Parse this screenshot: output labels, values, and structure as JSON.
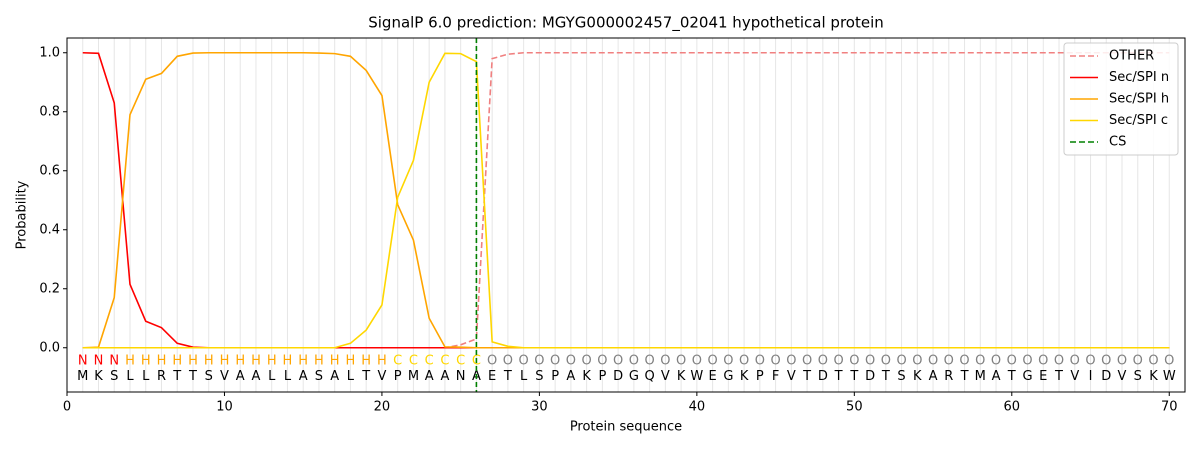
{
  "chart_data": {
    "type": "line",
    "title": "SignalP 6.0 prediction: MGYG000002457_02041 hypothetical protein",
    "x_label": "Protein sequence",
    "y_label": "Probability",
    "x": [
      1,
      2,
      3,
      4,
      5,
      6,
      7,
      8,
      9,
      10,
      11,
      12,
      13,
      14,
      15,
      16,
      17,
      18,
      19,
      20,
      21,
      22,
      23,
      24,
      25,
      26,
      27,
      28,
      29,
      30,
      31,
      32,
      33,
      34,
      35,
      36,
      37,
      38,
      39,
      40,
      41,
      42,
      43,
      44,
      45,
      46,
      47,
      48,
      49,
      50,
      51,
      52,
      53,
      54,
      55,
      56,
      57,
      58,
      59,
      60,
      61,
      62,
      63,
      64,
      65,
      66,
      67,
      68,
      69,
      70
    ],
    "sequence": [
      "M",
      "K",
      "S",
      "L",
      "L",
      "R",
      "T",
      "T",
      "S",
      "V",
      "A",
      "A",
      "L",
      "L",
      "A",
      "S",
      "A",
      "L",
      "T",
      "V",
      "P",
      "M",
      "A",
      "A",
      "N",
      "A",
      "E",
      "T",
      "L",
      "S",
      "P",
      "A",
      "K",
      "P",
      "D",
      "G",
      "Q",
      "V",
      "K",
      "W",
      "E",
      "G",
      "K",
      "P",
      "F",
      "V",
      "T",
      "D",
      "T",
      "T",
      "D",
      "T",
      "S",
      "K",
      "A",
      "R",
      "T",
      "M",
      "A",
      "T",
      "G",
      "E",
      "T",
      "V",
      "I",
      "D",
      "V",
      "S",
      "K",
      "W"
    ],
    "residue_labels": [
      "N",
      "N",
      "N",
      "H",
      "H",
      "H",
      "H",
      "H",
      "H",
      "H",
      "H",
      "H",
      "H",
      "H",
      "H",
      "H",
      "H",
      "H",
      "H",
      "H",
      "C",
      "C",
      "C",
      "C",
      "C",
      "C",
      "O",
      "O",
      "O",
      "O",
      "O",
      "O",
      "O",
      "O",
      "O",
      "O",
      "O",
      "O",
      "O",
      "O",
      "O",
      "O",
      "O",
      "O",
      "O",
      "O",
      "O",
      "O",
      "O",
      "O",
      "O",
      "O",
      "O",
      "O",
      "O",
      "O",
      "O",
      "O",
      "O",
      "O",
      "O",
      "O",
      "O",
      "O",
      "O",
      "O",
      "O",
      "O",
      "O",
      "O"
    ],
    "residue_label_colors": {
      "N": "#ff0000",
      "H": "#ffa500",
      "C": "#ffd700",
      "O": "#808080"
    },
    "series": [
      {
        "name": "OTHER",
        "color": "#f08080",
        "linestyle": "dashed",
        "values": [
          0,
          0,
          0,
          0,
          0,
          0,
          0,
          0,
          0,
          0,
          0,
          0,
          0,
          0,
          0,
          0,
          0,
          0,
          0,
          0,
          0,
          0,
          0,
          0,
          0.01,
          0.03,
          0.98,
          0.995,
          1,
          1,
          1,
          1,
          1,
          1,
          1,
          1,
          1,
          1,
          1,
          1,
          1,
          1,
          1,
          1,
          1,
          1,
          1,
          1,
          1,
          1,
          1,
          1,
          1,
          1,
          1,
          1,
          1,
          1,
          1,
          1,
          1,
          1,
          1,
          1,
          1,
          1,
          1,
          1,
          1,
          1
        ]
      },
      {
        "name": "Sec/SPI n",
        "color": "#ff0000",
        "linestyle": "solid",
        "values": [
          1.0,
          0.998,
          0.83,
          0.215,
          0.09,
          0.068,
          0.015,
          0.002,
          0,
          0,
          0,
          0,
          0,
          0,
          0,
          0,
          0,
          0,
          0,
          0,
          0,
          0,
          0,
          0,
          0,
          0,
          0,
          0,
          0,
          0,
          0,
          0,
          0,
          0,
          0,
          0,
          0,
          0,
          0,
          0,
          0,
          0,
          0,
          0,
          0,
          0,
          0,
          0,
          0,
          0,
          0,
          0,
          0,
          0,
          0,
          0,
          0,
          0,
          0,
          0,
          0,
          0,
          0,
          0,
          0,
          0,
          0,
          0,
          0,
          0
        ]
      },
      {
        "name": "Sec/SPI h",
        "color": "#ffa500",
        "linestyle": "solid",
        "values": [
          0,
          0.002,
          0.17,
          0.79,
          0.91,
          0.93,
          0.988,
          0.999,
          1,
          1,
          1,
          1,
          1,
          1,
          1,
          0.999,
          0.997,
          0.988,
          0.94,
          0.855,
          0.485,
          0.365,
          0.1,
          0.003,
          0.002,
          0,
          0,
          0,
          0,
          0,
          0,
          0,
          0,
          0,
          0,
          0,
          0,
          0,
          0,
          0,
          0,
          0,
          0,
          0,
          0,
          0,
          0,
          0,
          0,
          0,
          0,
          0,
          0,
          0,
          0,
          0,
          0,
          0,
          0,
          0,
          0,
          0,
          0,
          0,
          0,
          0,
          0,
          0,
          0,
          0
        ]
      },
      {
        "name": "Sec/SPI c",
        "color": "#ffd700",
        "linestyle": "solid",
        "values": [
          0,
          0,
          0,
          0,
          0,
          0,
          0,
          0,
          0,
          0,
          0,
          0,
          0,
          0,
          0,
          0,
          0,
          0.015,
          0.06,
          0.145,
          0.51,
          0.635,
          0.9,
          0.998,
          0.997,
          0.97,
          0.02,
          0.005,
          0,
          0,
          0,
          0,
          0,
          0,
          0,
          0,
          0,
          0,
          0,
          0,
          0,
          0,
          0,
          0,
          0,
          0,
          0,
          0,
          0,
          0,
          0,
          0,
          0,
          0,
          0,
          0,
          0,
          0,
          0,
          0,
          0,
          0,
          0,
          0,
          0,
          0,
          0,
          0,
          0,
          0
        ]
      }
    ],
    "cs": {
      "name": "CS",
      "color": "#008000",
      "x": 26
    },
    "xlim": [
      0,
      71
    ],
    "ylim": [
      -0.15,
      1.05
    ],
    "xticks": [
      0,
      10,
      20,
      30,
      40,
      50,
      60,
      70
    ],
    "yticks": [
      {
        "value": 0,
        "label": "0.0"
      },
      {
        "value": 0.2,
        "label": "0.2"
      },
      {
        "value": 0.4,
        "label": "0.4"
      },
      {
        "value": 0.6,
        "label": "0.6"
      },
      {
        "value": 0.8,
        "label": "0.8"
      },
      {
        "value": 1.0,
        "label": "1.0"
      }
    ],
    "position_grid": true,
    "legend": "upper right"
  }
}
